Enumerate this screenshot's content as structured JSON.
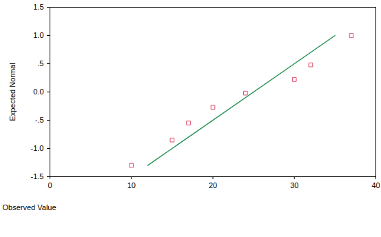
{
  "chart_data": {
    "type": "scatter",
    "x_label": "Observed Value",
    "y_label": "Expected Normal",
    "xlim": [
      0,
      40
    ],
    "xticks": [
      0,
      10,
      20,
      30,
      40
    ],
    "ylim": [
      -1.5,
      1.5
    ],
    "yticks": [
      {
        "value": -1.5,
        "label": "-1.5"
      },
      {
        "value": -1.0,
        "label": "-1.0"
      },
      {
        "value": -0.5,
        "label": "-.5"
      },
      {
        "value": 0.0,
        "label": "0.0"
      },
      {
        "value": 0.5,
        "label": ".5"
      },
      {
        "value": 1.0,
        "label": "1.0"
      },
      {
        "value": 1.5,
        "label": "1.5"
      }
    ],
    "grid": false,
    "series": [
      {
        "type": "scatter",
        "marker": "square",
        "color": "#e0506e",
        "x": [
          10,
          15,
          17,
          20,
          24,
          30,
          32,
          37
        ],
        "values": [
          -1.3,
          -0.85,
          -0.55,
          -0.27,
          -0.02,
          0.22,
          0.48,
          1.0
        ]
      },
      {
        "type": "line",
        "line_style": "solid",
        "color": "#1f8f4f",
        "x": [
          12,
          35
        ],
        "values": [
          -1.3,
          1.0
        ]
      }
    ]
  }
}
